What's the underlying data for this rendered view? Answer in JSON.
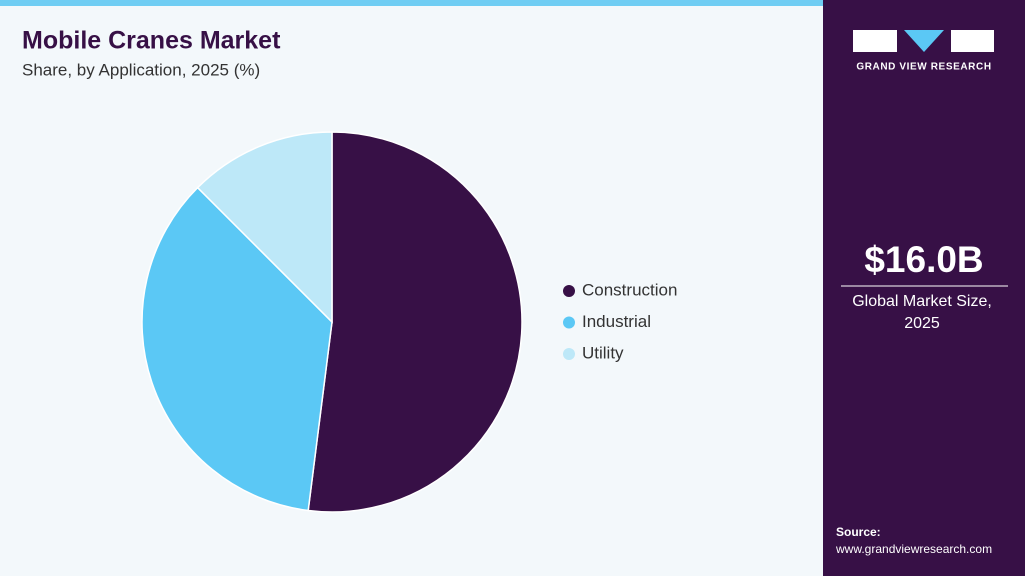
{
  "chart_data": {
    "type": "pie",
    "title": "Mobile Cranes Market",
    "subtitle": "Share, by Application, 2025 (%)",
    "categories": [
      "Construction",
      "Industrial",
      "Utility"
    ],
    "values": [
      52,
      35.5,
      12.5
    ],
    "colors": [
      "#371046",
      "#5bc8f5",
      "#bde8f8"
    ]
  },
  "sidebar": {
    "brand": "GRAND VIEW RESEARCH",
    "market_size": "$16.0B",
    "market_size_label": [
      "Global Market Size,",
      "2025"
    ],
    "source_label": "Source:",
    "source_url": "www.grandviewresearch.com"
  }
}
